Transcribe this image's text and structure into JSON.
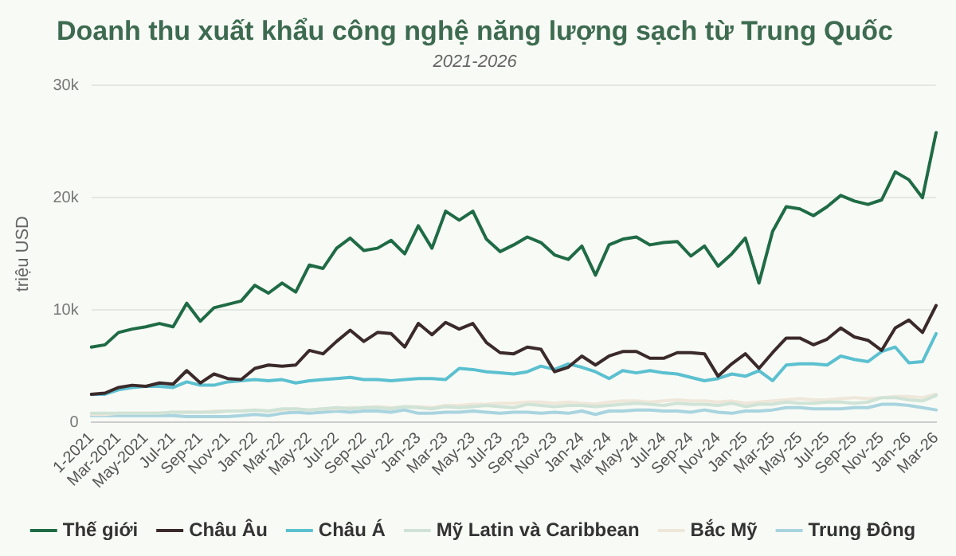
{
  "chart_data": {
    "type": "line",
    "title": "Doanh thu xuất khẩu công nghệ năng lượng sạch từ Trung Quốc",
    "subtitle": "2021-2026",
    "ylabel": "triệu USD",
    "categories": [
      "1-2021",
      null,
      "Mar-2021",
      null,
      "May-2021",
      null,
      "Jul-21",
      null,
      "Sep-21",
      null,
      "Nov-21",
      null,
      "Jan-22",
      null,
      "Mar-22",
      null,
      "May-22",
      null,
      "Jul-22",
      null,
      "Sep-22",
      null,
      "Nov-22",
      null,
      "Jan-23",
      null,
      "Mar-23",
      null,
      "May-23",
      null,
      "Jul-23",
      null,
      "Sep-23",
      null,
      "Nov-23",
      null,
      "Jan-24",
      null,
      "Mar-24",
      null,
      "May-24",
      null,
      "Jul-24",
      null,
      "Sep-24",
      null,
      "Nov-24",
      null,
      "Jan-25",
      null,
      "Mar-25",
      null,
      "May-25",
      null,
      "Jul-25",
      null,
      "Sep-25",
      null,
      "Nov-25",
      null,
      "Jan-26",
      null,
      "Mar-26"
    ],
    "series": [
      {
        "name": "Thế giới",
        "color": "#1f6b45",
        "values": [
          6700,
          6900,
          8000,
          8300,
          8500,
          8800,
          8500,
          10600,
          9000,
          10200,
          10500,
          10800,
          12200,
          11500,
          12400,
          11600,
          14000,
          13700,
          15500,
          16400,
          15300,
          15500,
          16200,
          15000,
          17500,
          15500,
          18800,
          18000,
          18800,
          16300,
          15200,
          15800,
          16500,
          16000,
          14900,
          14500,
          15700,
          13100,
          15800,
          16300,
          16500,
          15800,
          16000,
          16100,
          14800,
          15700,
          13900,
          15000,
          16400,
          12400,
          17000,
          19200,
          19000,
          18400,
          19200,
          20200,
          19700,
          19400,
          19800,
          22300,
          21600,
          20000,
          25800
        ]
      },
      {
        "name": "Châu Âu",
        "color": "#3b2a2a",
        "values": [
          2500,
          2600,
          3100,
          3300,
          3200,
          3500,
          3400,
          4600,
          3500,
          4300,
          3900,
          3800,
          4800,
          5100,
          5000,
          5100,
          6400,
          6100,
          7200,
          8200,
          7200,
          8000,
          7900,
          6700,
          8800,
          7800,
          8900,
          8300,
          8800,
          7100,
          6200,
          6100,
          6700,
          6500,
          4500,
          4900,
          5900,
          5100,
          5900,
          6300,
          6300,
          5700,
          5700,
          6200,
          6200,
          6100,
          4100,
          5200,
          6100,
          4800,
          6200,
          7500,
          7500,
          6900,
          7400,
          8400,
          7600,
          7300,
          6400,
          8400,
          9100,
          8000,
          10400
        ]
      },
      {
        "name": "Châu Á",
        "color": "#5bc0d0",
        "values": [
          2500,
          2500,
          2900,
          3100,
          3200,
          3200,
          3100,
          3600,
          3300,
          3300,
          3600,
          3700,
          3800,
          3700,
          3800,
          3500,
          3700,
          3800,
          3900,
          4000,
          3800,
          3800,
          3700,
          3800,
          3900,
          3900,
          3800,
          4800,
          4700,
          4500,
          4400,
          4300,
          4500,
          5000,
          4700,
          5200,
          4900,
          4500,
          3900,
          4600,
          4400,
          4600,
          4400,
          4300,
          4000,
          3700,
          3900,
          4300,
          4100,
          4600,
          3700,
          5100,
          5200,
          5200,
          5100,
          5900,
          5600,
          5400,
          6300,
          6700,
          5300,
          5400,
          7900
        ]
      },
      {
        "name": "Mỹ Latin và Caribbean",
        "color": "#cfe3d6",
        "values": [
          800,
          800,
          800,
          800,
          800,
          800,
          900,
          900,
          900,
          900,
          1000,
          1000,
          1100,
          1000,
          1200,
          1200,
          1100,
          1200,
          1300,
          1200,
          1300,
          1300,
          1200,
          1400,
          1300,
          1200,
          1400,
          1300,
          1400,
          1500,
          1400,
          1300,
          1600,
          1500,
          1400,
          1500,
          1500,
          1400,
          1500,
          1600,
          1700,
          1600,
          1500,
          1700,
          1600,
          1600,
          1500,
          1700,
          1400,
          1600,
          1600,
          1800,
          1700,
          1700,
          1800,
          1800,
          1700,
          1800,
          2200,
          2200,
          2000,
          1900,
          2400
        ]
      },
      {
        "name": "Bắc Mỹ",
        "color": "#efe7da",
        "values": [
          700,
          700,
          800,
          800,
          800,
          800,
          900,
          900,
          900,
          1000,
          1000,
          1000,
          1100,
          1000,
          1100,
          1200,
          1100,
          1200,
          1200,
          1300,
          1300,
          1400,
          1300,
          1400,
          1400,
          1300,
          1500,
          1500,
          1600,
          1600,
          1700,
          1700,
          1800,
          1800,
          1700,
          1800,
          1700,
          1600,
          1800,
          1900,
          1900,
          1800,
          1900,
          2000,
          1900,
          1900,
          1800,
          1900,
          1700,
          1800,
          1900,
          2000,
          2100,
          2000,
          2000,
          2100,
          2200,
          2100,
          2200,
          2300,
          2300,
          2200,
          2500
        ]
      },
      {
        "name": "Trung Đông",
        "color": "#a8d4df",
        "values": [
          600,
          600,
          600,
          600,
          600,
          600,
          600,
          500,
          500,
          500,
          500,
          600,
          700,
          600,
          800,
          900,
          800,
          900,
          1000,
          900,
          1000,
          1000,
          900,
          1100,
          800,
          800,
          900,
          900,
          1000,
          900,
          800,
          900,
          900,
          800,
          900,
          800,
          1000,
          700,
          1000,
          1000,
          1100,
          1100,
          1000,
          1000,
          900,
          1100,
          900,
          800,
          1000,
          1000,
          1100,
          1300,
          1300,
          1200,
          1200,
          1200,
          1300,
          1300,
          1600,
          1600,
          1500,
          1300,
          1100
        ]
      }
    ],
    "ylim": [
      0,
      30000
    ],
    "yticks": [
      0,
      {
        "value": 10000,
        "label": "10k"
      },
      {
        "value": 20000,
        "label": "20k"
      },
      {
        "value": 30000,
        "label": "30k"
      }
    ],
    "grid": "y",
    "legend": "bottom",
    "marker": "none",
    "line_style": "solid"
  }
}
